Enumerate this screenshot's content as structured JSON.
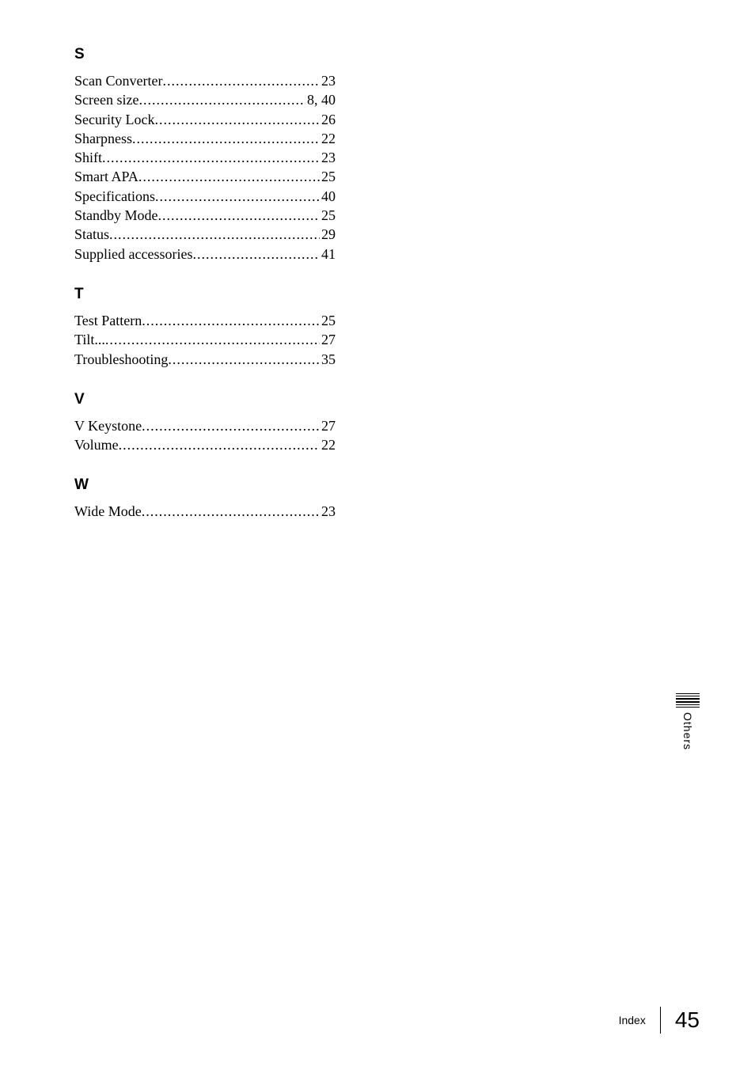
{
  "sections": [
    {
      "letter": "S",
      "entries": [
        {
          "label": "Scan Converter",
          "pages": "23"
        },
        {
          "label": "Screen size",
          "pages": "8, 40"
        },
        {
          "label": "Security Lock",
          "pages": "26"
        },
        {
          "label": "Sharpness",
          "pages": "22"
        },
        {
          "label": "Shift",
          "pages": "23"
        },
        {
          "label": "Smart APA",
          "pages": "25"
        },
        {
          "label": "Specifications",
          "pages": "40"
        },
        {
          "label": "Standby Mode",
          "pages": "25"
        },
        {
          "label": "Status",
          "pages": "29"
        },
        {
          "label": "Supplied accessories",
          "pages": "41"
        }
      ]
    },
    {
      "letter": "T",
      "entries": [
        {
          "label": "Test Pattern",
          "pages": "25"
        },
        {
          "label": "Tilt...",
          "pages": "27"
        },
        {
          "label": "Troubleshooting",
          "pages": "35"
        }
      ]
    },
    {
      "letter": "V",
      "entries": [
        {
          "label": "V Keystone",
          "pages": "27"
        },
        {
          "label": "Volume",
          "pages": "22"
        }
      ]
    },
    {
      "letter": "W",
      "entries": [
        {
          "label": "Wide Mode",
          "pages": "23"
        }
      ]
    }
  ],
  "sideTab": "Others",
  "footer": {
    "label": "Index",
    "page": "45"
  },
  "style": {
    "leaderChar": ".",
    "textColor": "#000000",
    "background": "#ffffff"
  }
}
